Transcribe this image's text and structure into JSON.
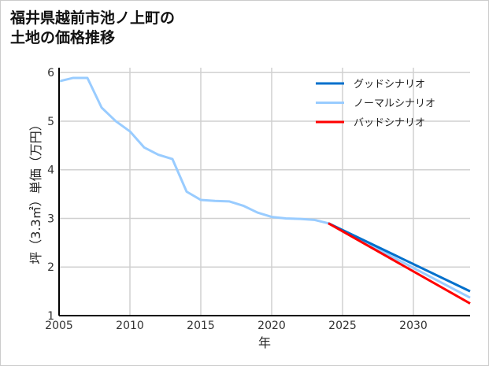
{
  "chart_data": {
    "type": "line",
    "title_line1": "福井県越前市池ノ上町の",
    "title_line2": "土地の価格推移",
    "xlabel": "年",
    "ylabel": "坪（3.3㎡）単価（万円）",
    "xlim": [
      2005,
      2034
    ],
    "ylim": [
      1,
      6.1
    ],
    "xticks": [
      2005,
      2010,
      2015,
      2020,
      2025,
      2030
    ],
    "yticks": [
      1,
      2,
      3,
      4,
      5,
      6
    ],
    "grid": true,
    "legend_position": "top-right",
    "series": [
      {
        "name": "グッドシナリオ",
        "color": "#0070cc",
        "x": [
          2024,
          2034
        ],
        "y": [
          2.9,
          1.5
        ]
      },
      {
        "name": "ノーマルシナリオ",
        "color": "#99ccff",
        "x": [
          2005,
          2006,
          2007,
          2008,
          2009,
          2010,
          2011,
          2012,
          2013,
          2014,
          2015,
          2016,
          2017,
          2018,
          2019,
          2020,
          2021,
          2022,
          2023,
          2024,
          2034
        ],
        "y": [
          5.82,
          5.89,
          5.89,
          5.28,
          5.0,
          4.79,
          4.46,
          4.31,
          4.22,
          3.55,
          3.38,
          3.36,
          3.35,
          3.26,
          3.12,
          3.03,
          3.0,
          2.99,
          2.97,
          2.9,
          1.37
        ]
      },
      {
        "name": "バッドシナリオ",
        "color": "#ff0000",
        "x": [
          2024,
          2034
        ],
        "y": [
          2.9,
          1.25
        ]
      }
    ]
  }
}
